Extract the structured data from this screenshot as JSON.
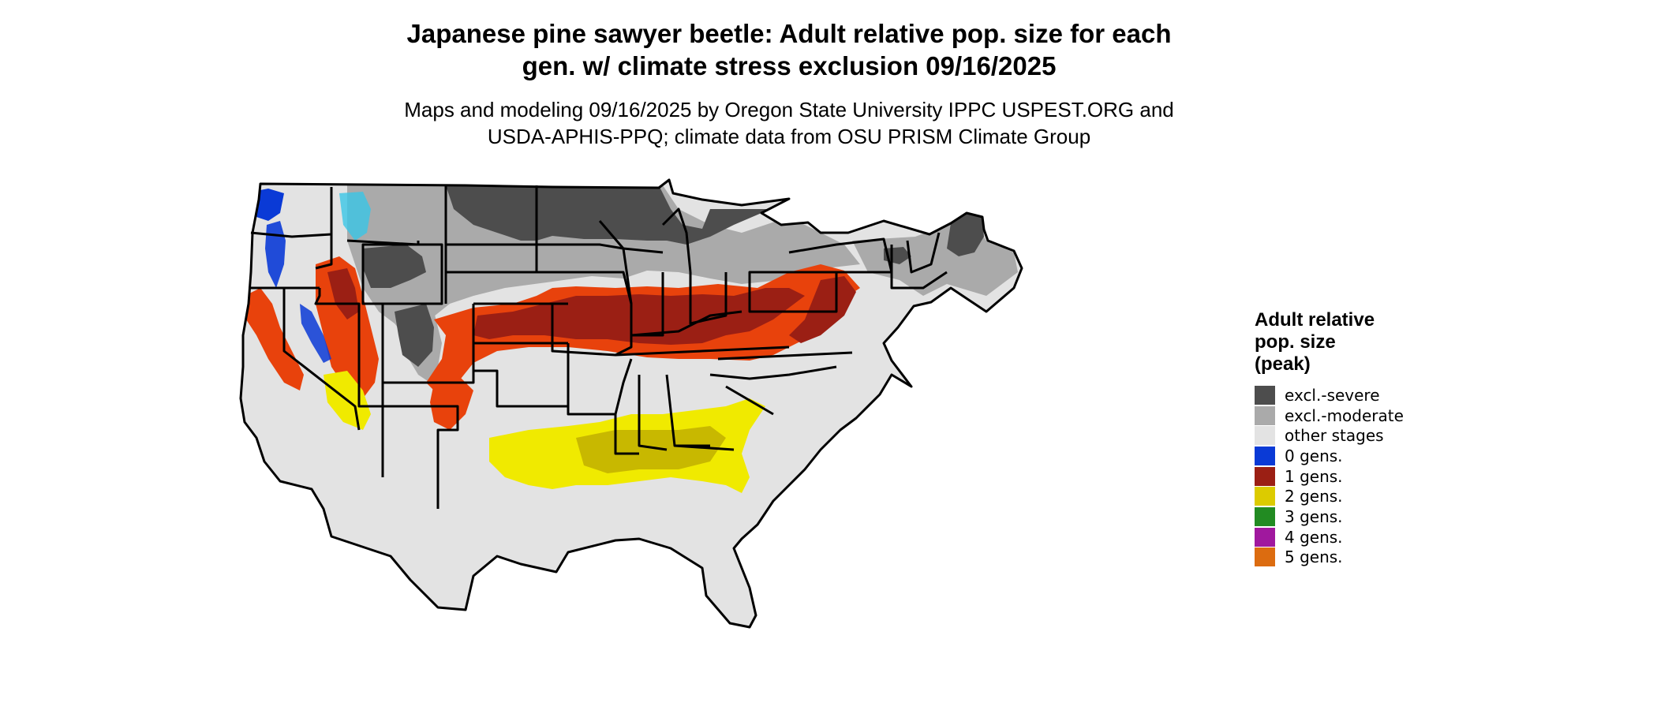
{
  "title_line1": "Japanese pine sawyer beetle: Adult relative pop. size for each",
  "title_line2": "gen. w/ climate stress exclusion 09/16/2025",
  "subtitle_line1": "Maps and modeling 09/16/2025 by Oregon State University IPPC USPEST.ORG and",
  "subtitle_line2": "USDA-APHIS-PPQ; climate data from OSU PRISM Climate Group",
  "legend": {
    "title_line1": "Adult relative",
    "title_line2": "pop. size",
    "title_line3": "(peak)",
    "items": [
      {
        "label": "excl.-severe",
        "color": "#4d4d4d"
      },
      {
        "label": "excl.-moderate",
        "color": "#aaaaaa"
      },
      {
        "label": "other stages",
        "color": "#e3e3e3"
      },
      {
        "label": "0 gens.",
        "color": "#0a3ad6"
      },
      {
        "label": "1 gens.",
        "color": "#9b1f14"
      },
      {
        "label": "2 gens.",
        "color": "#dccb00"
      },
      {
        "label": "3 gens.",
        "color": "#228b22"
      },
      {
        "label": "4 gens.",
        "color": "#a0189e"
      },
      {
        "label": "5 gens.",
        "color": "#dc6c10"
      }
    ]
  },
  "map_colors": {
    "severe": "#4d4d4d",
    "moderate": "#aaaaaa",
    "other": "#e3e3e3",
    "zero": "#0a3ad6",
    "one_dark": "#9b1f14",
    "one_orange": "#e8420c",
    "two": "#f0ea00",
    "two_dark": "#c8b800",
    "three": "#228b22",
    "cyan": "#39c6e6",
    "border": "#000000"
  }
}
